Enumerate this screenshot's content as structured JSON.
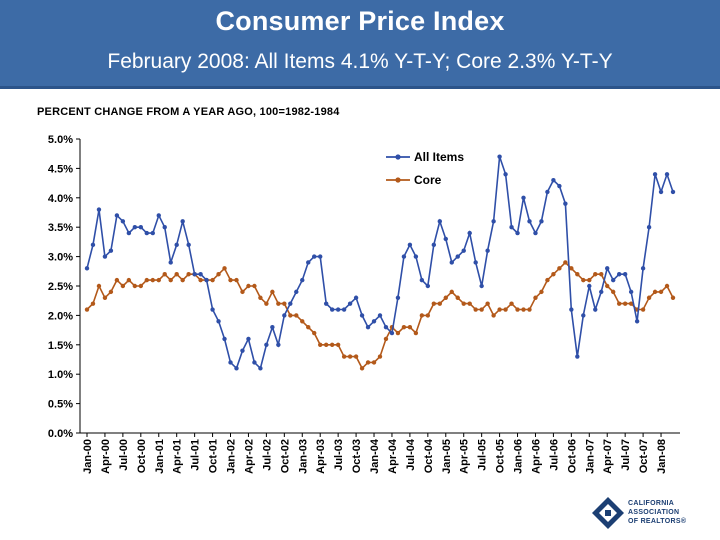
{
  "header": {
    "title": "Consumer Price Index",
    "subtitle": "February 2008: All Items 4.1% Y-T-Y; Core 2.3% Y-T-Y"
  },
  "colors": {
    "banner": "#3d6ba6",
    "all_items": "#2f4fa8",
    "core": "#b3591a"
  },
  "chart_data": {
    "type": "line",
    "title": "PERCENT CHANGE FROM A YEAR AGO, 100=1982-1984",
    "xlabel": "",
    "ylabel": "",
    "ylim": [
      0,
      5
    ],
    "ytick_labels": [
      "0.0%",
      "0.5%",
      "1.0%",
      "1.5%",
      "2.0%",
      "2.5%",
      "3.0%",
      "3.5%",
      "4.0%",
      "4.5%",
      "5.0%"
    ],
    "xtick_labels": [
      "Jan-00",
      "Apr-00",
      "Jul-00",
      "Oct-00",
      "Jan-01",
      "Apr-01",
      "Jul-01",
      "Oct-01",
      "Jan-02",
      "Apr-02",
      "Jul-02",
      "Oct-02",
      "Jan-03",
      "Apr-03",
      "Jul-03",
      "Oct-03",
      "Jan-04",
      "Apr-04",
      "Jul-04",
      "Oct-04",
      "Jan-05",
      "Apr-05",
      "Jul-05",
      "Oct-05",
      "Jan-06",
      "Apr-06",
      "Jul-06",
      "Oct-06",
      "Jan-07",
      "Apr-07",
      "Jul-07",
      "Oct-07",
      "Jan-08"
    ],
    "legend_position": "top-right",
    "series": [
      {
        "name": "All Items",
        "values": [
          2.8,
          3.2,
          3.8,
          3.0,
          3.1,
          3.7,
          3.6,
          3.4,
          3.5,
          3.5,
          3.4,
          3.4,
          3.7,
          3.5,
          2.9,
          3.2,
          3.6,
          3.2,
          2.7,
          2.7,
          2.6,
          2.1,
          1.9,
          1.6,
          1.2,
          1.1,
          1.4,
          1.6,
          1.2,
          1.1,
          1.5,
          1.8,
          1.5,
          2.0,
          2.2,
          2.4,
          2.6,
          2.9,
          3.0,
          3.0,
          2.2,
          2.1,
          2.1,
          2.1,
          2.2,
          2.3,
          2.0,
          1.8,
          1.9,
          2.0,
          1.8,
          1.7,
          2.3,
          3.0,
          3.2,
          3.0,
          2.6,
          2.5,
          3.2,
          3.6,
          3.3,
          2.9,
          3.0,
          3.1,
          3.4,
          2.9,
          2.5,
          3.1,
          3.6,
          4.7,
          4.4,
          3.5,
          3.4,
          4.0,
          3.6,
          3.4,
          3.6,
          4.1,
          4.3,
          4.2,
          3.9,
          2.1,
          1.3,
          2.0,
          2.5,
          2.1,
          2.4,
          2.8,
          2.6,
          2.7,
          2.7,
          2.4,
          1.9,
          2.8,
          3.5,
          4.4,
          4.1,
          4.4,
          4.1
        ]
      },
      {
        "name": "Core",
        "values": [
          2.1,
          2.2,
          2.5,
          2.3,
          2.4,
          2.6,
          2.5,
          2.6,
          2.5,
          2.5,
          2.6,
          2.6,
          2.6,
          2.7,
          2.6,
          2.7,
          2.6,
          2.7,
          2.7,
          2.6,
          2.6,
          2.6,
          2.7,
          2.8,
          2.6,
          2.6,
          2.4,
          2.5,
          2.5,
          2.3,
          2.2,
          2.4,
          2.2,
          2.2,
          2.0,
          2.0,
          1.9,
          1.8,
          1.7,
          1.5,
          1.5,
          1.5,
          1.5,
          1.3,
          1.3,
          1.3,
          1.1,
          1.2,
          1.2,
          1.3,
          1.6,
          1.8,
          1.7,
          1.8,
          1.8,
          1.7,
          2.0,
          2.0,
          2.2,
          2.2,
          2.3,
          2.4,
          2.3,
          2.2,
          2.2,
          2.1,
          2.1,
          2.2,
          2.0,
          2.1,
          2.1,
          2.2,
          2.1,
          2.1,
          2.1,
          2.3,
          2.4,
          2.6,
          2.7,
          2.8,
          2.9,
          2.8,
          2.7,
          2.6,
          2.6,
          2.7,
          2.7,
          2.5,
          2.4,
          2.2,
          2.2,
          2.2,
          2.1,
          2.1,
          2.3,
          2.4,
          2.4,
          2.5,
          2.3
        ]
      }
    ]
  },
  "logo": {
    "line1": "CALIFORNIA",
    "line2": "ASSOCIATION",
    "line3": "OF REALTORS®"
  }
}
